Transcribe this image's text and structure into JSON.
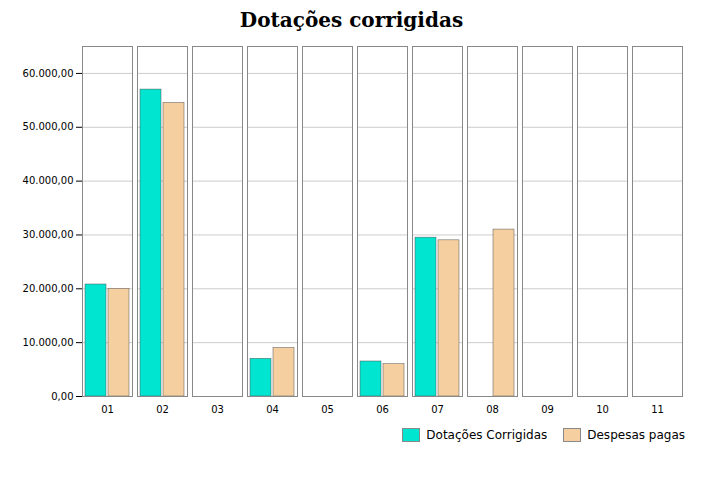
{
  "chart_data": {
    "type": "bar",
    "title": "Dotações corrigidas",
    "categories": [
      "01",
      "02",
      "03",
      "04",
      "05",
      "06",
      "07",
      "08",
      "09",
      "10",
      "11"
    ],
    "series": [
      {
        "name": "Dotações Corrigidas",
        "color": "#00E5D0",
        "values": [
          20800,
          57000,
          0,
          7000,
          0,
          6500,
          29500,
          0,
          0,
          0,
          0
        ]
      },
      {
        "name": "Despesas pagas",
        "color": "#F5CFA0",
        "values": [
          20000,
          54500,
          0,
          9000,
          0,
          6000,
          29000,
          31000,
          0,
          0,
          0
        ]
      }
    ],
    "ylim": [
      0,
      65000
    ],
    "yticks": [
      {
        "value": 0,
        "label": "0,00"
      },
      {
        "value": 10000,
        "label": "10.000,00"
      },
      {
        "value": 20000,
        "label": "20.000,00"
      },
      {
        "value": 30000,
        "label": "30.000,00"
      },
      {
        "value": 40000,
        "label": "40.000,00"
      },
      {
        "value": 50000,
        "label": "50.000,00"
      },
      {
        "value": 60000,
        "label": "60.000,00"
      }
    ],
    "grid": true,
    "legend": "lower right"
  }
}
